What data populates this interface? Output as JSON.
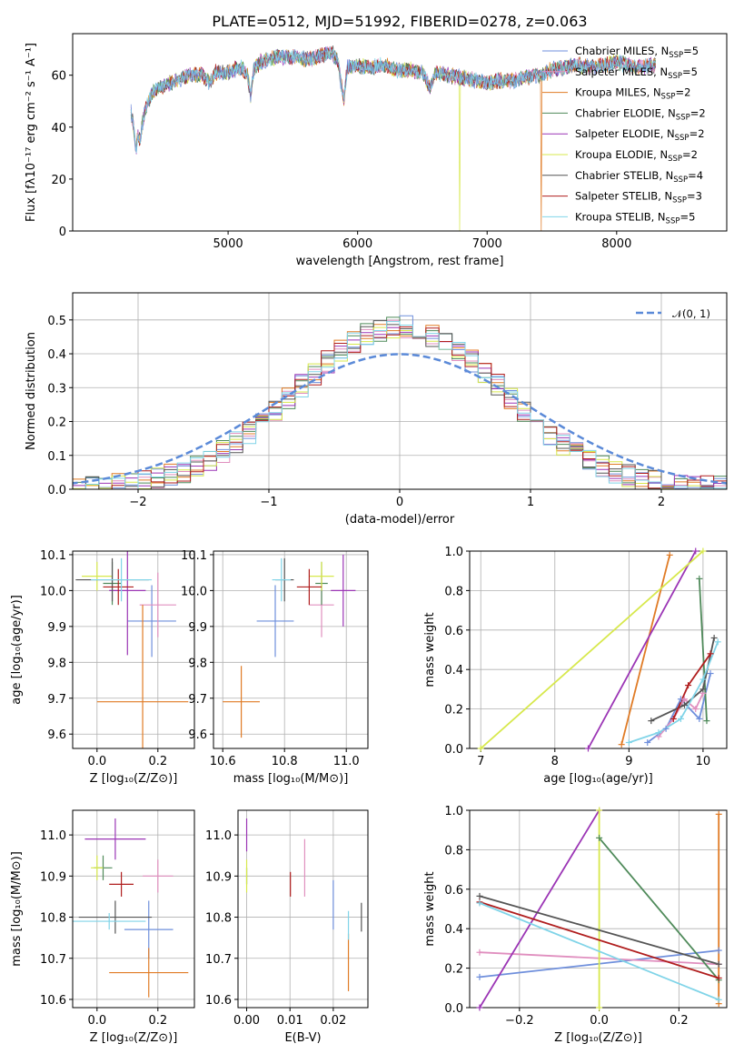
{
  "title": "PLATE=0512, MJD=51992, FIBERID=0278, z=0.063",
  "colors": [
    "#6f8fdc",
    "#e08fbf",
    "#e07b25",
    "#4f8a5a",
    "#9b35b5",
    "#d7e84c",
    "#555555",
    "#b01e1e",
    "#80d4e8"
  ],
  "models": [
    {
      "label": "Chabrier MILES, N",
      "sub": "SSP",
      "n": "=5"
    },
    {
      "label": "Salpeter MILES, N",
      "sub": "SSP",
      "n": "=5"
    },
    {
      "label": "Kroupa MILES, N",
      "sub": "SSP",
      "n": "=2"
    },
    {
      "label": "Chabrier ELODIE, N",
      "sub": "SSP",
      "n": "=2"
    },
    {
      "label": "Salpeter ELODIE, N",
      "sub": "SSP",
      "n": "=2"
    },
    {
      "label": "Kroupa ELODIE, N",
      "sub": "SSP",
      "n": "=2"
    },
    {
      "label": "Chabrier STELIB, N",
      "sub": "SSP",
      "n": "=4"
    },
    {
      "label": "Salpeter STELIB, N",
      "sub": "SSP",
      "n": "=3"
    },
    {
      "label": "Kroupa STELIB, N",
      "sub": "SSP",
      "n": "=5"
    }
  ],
  "chart_data": [
    {
      "id": "spectrum",
      "type": "line",
      "xlabel": "wavelength [Angstrom, rest frame]",
      "ylabel": "Flux [fλ10⁻¹⁷ erg cm⁻² s⁻¹ A⁻¹]",
      "xlim": [
        3800,
        8850
      ],
      "ylim": [
        0,
        76
      ],
      "xticks": [
        5000,
        6000,
        7000,
        8000
      ],
      "yticks": [
        0,
        20,
        40,
        60
      ],
      "x": [
        4250,
        4270,
        4290,
        4300,
        4320,
        4350,
        4400,
        4450,
        4500,
        4600,
        4700,
        4800,
        4860,
        4900,
        5000,
        5100,
        5150,
        5175,
        5200,
        5250,
        5300,
        5400,
        5500,
        5600,
        5700,
        5800,
        5850,
        5893,
        5920,
        6000,
        6100,
        6200,
        6300,
        6400,
        6500,
        6563,
        6600,
        6700,
        6800,
        6900,
        7000,
        7100,
        7200,
        7300,
        7400,
        7500,
        7600,
        7700,
        7800,
        7900,
        8000,
        8100,
        8200,
        8300
      ],
      "y": [
        46,
        40,
        30,
        38,
        35,
        45,
        52,
        55,
        56,
        58,
        60,
        60,
        57,
        61,
        61,
        63,
        60,
        52,
        63,
        65,
        66,
        67,
        67,
        66,
        67,
        69,
        65,
        50,
        63,
        64,
        63,
        64,
        62,
        62,
        61,
        55,
        61,
        60,
        59,
        58,
        57,
        58,
        58,
        59,
        60,
        62,
        63,
        64,
        63,
        64,
        65,
        64,
        63,
        64
      ],
      "drops": [
        {
          "model": 5,
          "x": 6790
        },
        {
          "model": 2,
          "x": 7420
        }
      ]
    },
    {
      "id": "residual-histogram",
      "type": "histogram",
      "xlabel": "(data-model)/error",
      "ylabel": "Normed distribution",
      "xlim": [
        -2.5,
        2.5
      ],
      "ylim": [
        0,
        0.58
      ],
      "xticks": [
        -2,
        -1,
        0,
        1,
        2
      ],
      "yticks": [
        0.0,
        0.1,
        0.2,
        0.3,
        0.4,
        0.5
      ],
      "bin_width": 0.1,
      "legend": "𝒩(0, 1)",
      "reference": {
        "name": "N(0,1)",
        "mu": 0,
        "sigma": 1
      }
    },
    {
      "id": "age-vs-metallicity",
      "type": "scatter",
      "xlabel": "Z [log₁₀(Z/Z⊙)]",
      "ylabel": "age  [log₁₀(age/yr)]",
      "xlim": [
        -0.08,
        0.32
      ],
      "ylim": [
        9.56,
        10.11
      ],
      "xticks": [
        0.0,
        0.2
      ],
      "yticks": [
        9.6,
        9.7,
        9.8,
        9.9,
        10.0,
        10.1
      ],
      "points": [
        {
          "m": 0,
          "x": 0.18,
          "y": 9.915,
          "xe": 0.08,
          "ye": 0.1
        },
        {
          "m": 1,
          "x": 0.2,
          "y": 9.96,
          "xe": 0.06,
          "ye": 0.09
        },
        {
          "m": 2,
          "x": 0.15,
          "y": 9.69,
          "xe": 0.15,
          "ye": 0.27
        },
        {
          "m": 3,
          "x": 0.05,
          "y": 10.02,
          "xe": 0.03,
          "ye": 0.06
        },
        {
          "m": 4,
          "x": 0.1,
          "y": 10.0,
          "xe": 0.06,
          "ye": 0.18
        },
        {
          "m": 5,
          "x": 0.0,
          "y": 10.04,
          "xe": 0.05,
          "ye": 0.04
        },
        {
          "m": 6,
          "x": 0.05,
          "y": 10.03,
          "xe": 0.12,
          "ye": 0.06
        },
        {
          "m": 7,
          "x": 0.07,
          "y": 10.01,
          "xe": 0.05,
          "ye": 0.05
        },
        {
          "m": 8,
          "x": 0.08,
          "y": 10.03,
          "xe": 0.1,
          "ye": 0.06
        }
      ]
    },
    {
      "id": "age-vs-mass",
      "type": "scatter",
      "xlabel": "mass [log₁₀(M/M⊙)]",
      "ylabel": "",
      "xlim": [
        10.57,
        11.07
      ],
      "ylim": [
        9.56,
        10.11
      ],
      "xticks": [
        10.6,
        10.8,
        11.0
      ],
      "yticks": [
        9.6,
        9.7,
        9.8,
        9.9,
        10.0,
        10.1
      ],
      "points": [
        {
          "m": 0,
          "x": 10.77,
          "y": 9.915,
          "xe": 0.06,
          "ye": 0.1
        },
        {
          "m": 1,
          "x": 10.92,
          "y": 9.96,
          "xe": 0.04,
          "ye": 0.09
        },
        {
          "m": 2,
          "x": 10.66,
          "y": 9.69,
          "xe": 0.06,
          "ye": 0.1
        },
        {
          "m": 3,
          "x": 10.92,
          "y": 10.02,
          "xe": 0.02,
          "ye": 0.06
        },
        {
          "m": 4,
          "x": 10.99,
          "y": 10.0,
          "xe": 0.04,
          "ye": 0.1
        },
        {
          "m": 5,
          "x": 10.92,
          "y": 10.04,
          "xe": 0.04,
          "ye": 0.04
        },
        {
          "m": 6,
          "x": 10.8,
          "y": 10.03,
          "xe": 0.03,
          "ye": 0.06
        },
        {
          "m": 7,
          "x": 10.88,
          "y": 10.01,
          "xe": 0.04,
          "ye": 0.05
        },
        {
          "m": 8,
          "x": 10.79,
          "y": 10.03,
          "xe": 0.03,
          "ye": 0.06
        }
      ]
    },
    {
      "id": "mass-weight-vs-age",
      "type": "line",
      "xlabel": "age  [log₁₀(age/yr)]",
      "ylabel": "mass weight",
      "xlim": [
        6.85,
        10.32
      ],
      "ylim": [
        0,
        1
      ],
      "xticks": [
        7,
        8,
        9,
        10
      ],
      "yticks": [
        0.0,
        0.2,
        0.4,
        0.6,
        0.8,
        1.0
      ],
      "series": [
        {
          "m": 0,
          "x": [
            9.25,
            9.5,
            9.7,
            9.95,
            10.1
          ],
          "y": [
            0.03,
            0.1,
            0.25,
            0.15,
            0.38
          ]
        },
        {
          "m": 1,
          "x": [
            9.4,
            9.6,
            9.75,
            9.9,
            10.0
          ],
          "y": [
            0.06,
            0.15,
            0.25,
            0.2,
            0.28
          ]
        },
        {
          "m": 2,
          "x": [
            8.9,
            9.55
          ],
          "y": [
            0.02,
            0.98
          ]
        },
        {
          "m": 3,
          "x": [
            9.95,
            10.05
          ],
          "y": [
            0.86,
            0.14
          ]
        },
        {
          "m": 4,
          "x": [
            8.45,
            9.9
          ],
          "y": [
            0.0,
            1.0
          ]
        },
        {
          "m": 5,
          "x": [
            7.0,
            10.0
          ],
          "y": [
            0.0,
            1.0
          ]
        },
        {
          "m": 6,
          "x": [
            9.3,
            9.75,
            10.0,
            10.15
          ],
          "y": [
            0.14,
            0.22,
            0.3,
            0.56
          ]
        },
        {
          "m": 7,
          "x": [
            9.6,
            9.8,
            10.1
          ],
          "y": [
            0.15,
            0.32,
            0.48
          ]
        },
        {
          "m": 8,
          "x": [
            9.0,
            9.4,
            9.7,
            10.0,
            10.2
          ],
          "y": [
            0.03,
            0.08,
            0.15,
            0.35,
            0.54
          ]
        }
      ]
    },
    {
      "id": "mass-vs-metallicity",
      "type": "scatter",
      "xlabel": "Z [log₁₀(Z/Z⊙)]",
      "ylabel": "mass [log₁₀(M/M⊙)]",
      "xlim": [
        -0.08,
        0.32
      ],
      "ylim": [
        10.58,
        11.06
      ],
      "xticks": [
        0.0,
        0.2
      ],
      "yticks": [
        10.6,
        10.7,
        10.8,
        10.9,
        11.0
      ],
      "points": [
        {
          "m": 0,
          "x": 0.17,
          "y": 10.77,
          "xe": 0.08,
          "ye": 0.07
        },
        {
          "m": 1,
          "x": 0.2,
          "y": 10.9,
          "xe": 0.05,
          "ye": 0.04
        },
        {
          "m": 2,
          "x": 0.17,
          "y": 10.665,
          "xe": 0.13,
          "ye": 0.06
        },
        {
          "m": 3,
          "x": 0.02,
          "y": 10.92,
          "xe": 0.03,
          "ye": 0.03
        },
        {
          "m": 4,
          "x": 0.06,
          "y": 10.99,
          "xe": 0.1,
          "ye": 0.05
        },
        {
          "m": 5,
          "x": 0.0,
          "y": 10.92,
          "xe": 0.02,
          "ye": 0.03
        },
        {
          "m": 6,
          "x": 0.06,
          "y": 10.8,
          "xe": 0.12,
          "ye": 0.04
        },
        {
          "m": 7,
          "x": 0.08,
          "y": 10.88,
          "xe": 0.04,
          "ye": 0.03
        },
        {
          "m": 8,
          "x": 0.04,
          "y": 10.79,
          "xe": 0.12,
          "ye": 0.02
        }
      ]
    },
    {
      "id": "mass-vs-extinction",
      "type": "scatter",
      "xlabel": "E(B-V)",
      "ylabel": "",
      "xlim": [
        -0.002,
        0.028
      ],
      "ylim": [
        10.58,
        11.06
      ],
      "xticks": [
        0.0,
        0.01,
        0.02
      ],
      "yticks": [
        10.6,
        10.7,
        10.8,
        10.9,
        11.0
      ],
      "points": [
        {
          "m": 0,
          "x": 0.02,
          "y": 10.83,
          "xe": 0,
          "ye": 0.06
        },
        {
          "m": 1,
          "x": 0.0134,
          "y": 10.92,
          "xe": 0,
          "ye": 0.07
        },
        {
          "m": 2,
          "x": 0.0235,
          "y": 10.69,
          "xe": 0,
          "ye": 0.07
        },
        {
          "m": 3,
          "x": 0.0,
          "y": 10.9,
          "xe": 0,
          "ye": 0.02
        },
        {
          "m": 4,
          "x": 0.0,
          "y": 11.0,
          "xe": 0,
          "ye": 0.04
        },
        {
          "m": 5,
          "x": 0.0,
          "y": 10.9,
          "xe": 0,
          "ye": 0.04
        },
        {
          "m": 6,
          "x": 0.0265,
          "y": 10.8,
          "xe": 0,
          "ye": 0.035
        },
        {
          "m": 7,
          "x": 0.0101,
          "y": 10.88,
          "xe": 0,
          "ye": 0.03
        },
        {
          "m": 8,
          "x": 0.0235,
          "y": 10.78,
          "xe": 0,
          "ye": 0.035
        }
      ]
    },
    {
      "id": "mass-weight-vs-metallicity",
      "type": "line",
      "xlabel": "Z [log₁₀(Z/Z⊙)]",
      "ylabel": "mass weight",
      "xlim": [
        -0.325,
        0.32
      ],
      "ylim": [
        0,
        1
      ],
      "xticks": [
        -0.2,
        0.0,
        0.2
      ],
      "yticks": [
        0.0,
        0.2,
        0.4,
        0.6,
        0.8,
        1.0
      ],
      "xticklabels": [
        "−0.2",
        "0.0",
        "0.2"
      ],
      "series": [
        {
          "m": 0,
          "x": [
            -0.3,
            0.3
          ],
          "y": [
            0.155,
            0.29
          ]
        },
        {
          "m": 1,
          "x": [
            -0.3,
            0.3
          ],
          "y": [
            0.28,
            0.22
          ]
        },
        {
          "m": 2,
          "x": [
            0.3,
            0.3
          ],
          "y": [
            0.02,
            0.98
          ]
        },
        {
          "m": 3,
          "x": [
            0.0,
            0.3
          ],
          "y": [
            0.86,
            0.14
          ]
        },
        {
          "m": 4,
          "x": [
            -0.3,
            0.0
          ],
          "y": [
            0.0,
            1.0
          ]
        },
        {
          "m": 5,
          "x": [
            0.0,
            0.0
          ],
          "y": [
            0.0,
            1.0
          ]
        },
        {
          "m": 6,
          "x": [
            -0.3,
            0.3
          ],
          "y": [
            0.565,
            0.22
          ]
        },
        {
          "m": 7,
          "x": [
            -0.3,
            0.3
          ],
          "y": [
            0.535,
            0.15
          ]
        },
        {
          "m": 8,
          "x": [
            -0.3,
            0.3
          ],
          "y": [
            0.53,
            0.04
          ]
        }
      ]
    }
  ]
}
